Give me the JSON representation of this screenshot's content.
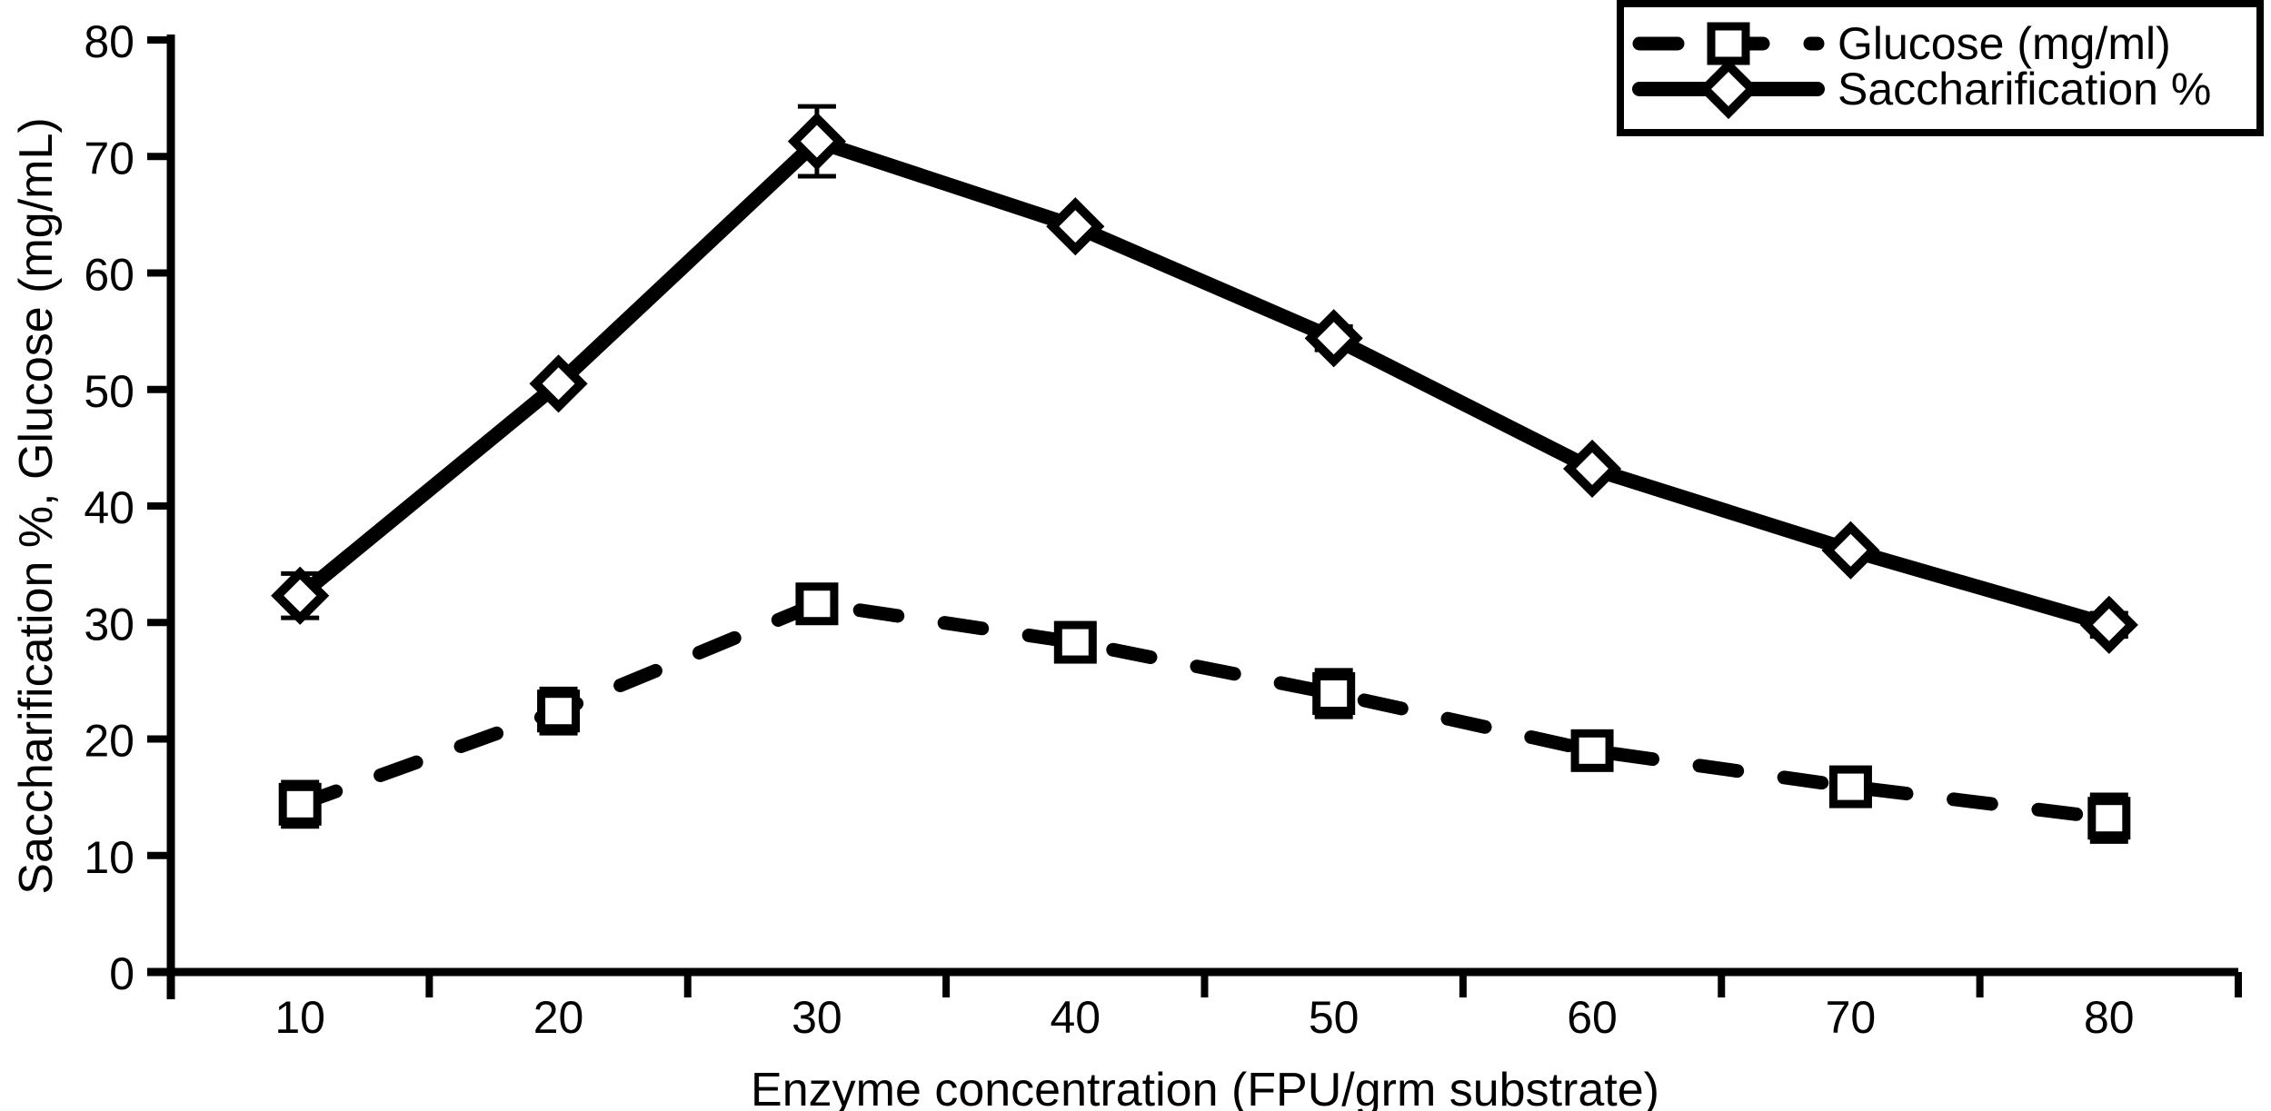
{
  "chart_data": {
    "type": "line",
    "title": "",
    "xlabel": "Enzyme concentration (FPU/grm substrate)",
    "ylabel": "Saccharification %, Glucose (mg/mL)",
    "x": [
      10,
      20,
      30,
      40,
      50,
      60,
      70,
      80
    ],
    "y_ticks": [
      0,
      10,
      20,
      30,
      40,
      50,
      60,
      70,
      80
    ],
    "ylim": [
      0,
      80
    ],
    "grid": false,
    "legend_position": "top-right",
    "series": [
      {
        "name": "Glucose (mg/ml)",
        "style": "dashed",
        "marker": "square",
        "values": [
          14.4,
          22.4,
          31.6,
          28.3,
          23.9,
          19.0,
          15.9,
          13.2
        ],
        "errors": [
          1.9,
          1.9,
          0.5,
          0,
          2.0,
          0,
          0,
          2.0
        ]
      },
      {
        "name": "Saccharification %",
        "style": "solid",
        "marker": "diamond",
        "values": [
          32.3,
          50.5,
          71.3,
          64.0,
          54.4,
          43.2,
          36.2,
          29.8
        ],
        "errors": [
          1.9,
          0,
          3.0,
          0,
          1.0,
          0,
          0,
          1.0
        ]
      }
    ],
    "colors": {
      "line": "#000000",
      "background": "#ffffff"
    }
  }
}
